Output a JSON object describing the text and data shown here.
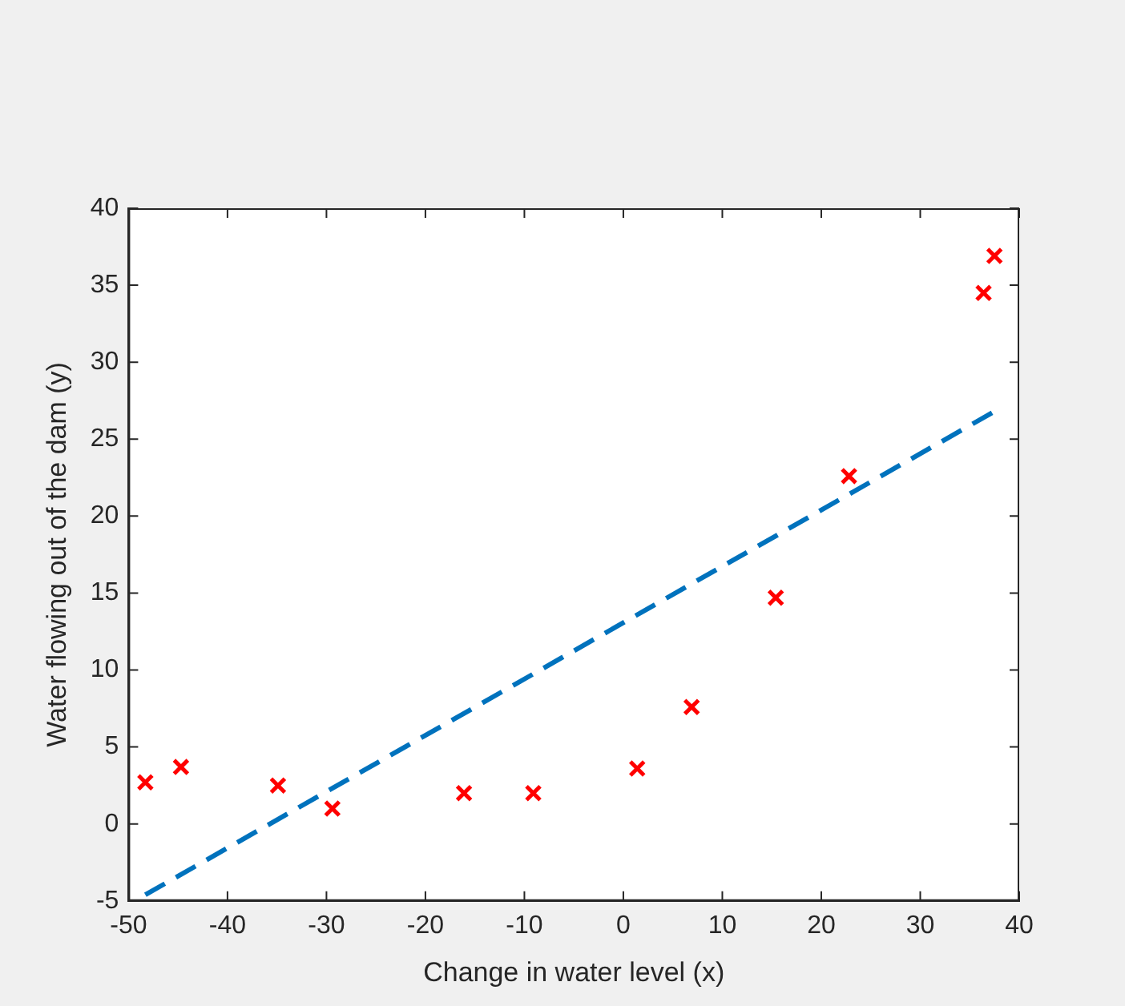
{
  "chart_data": {
    "type": "scatter",
    "xlabel": "Change in water level (x)",
    "ylabel": "Water flowing out of the dam (y)",
    "xlim": [
      -50,
      40
    ],
    "xticks": [
      -50,
      -40,
      -30,
      -20,
      -10,
      0,
      10,
      20,
      30,
      40
    ],
    "ylim": [
      -5,
      40
    ],
    "yticks": [
      -5,
      0,
      5,
      10,
      15,
      20,
      25,
      30,
      35,
      40
    ],
    "grid": false,
    "legend": false,
    "series": [
      {
        "color": "#ff0000",
        "marker": "cross",
        "x": [
          -48.3,
          -44.7,
          -34.9,
          -29.4,
          -16.1,
          -9.1,
          1.4,
          6.9,
          15.4,
          22.8,
          36.4,
          37.5
        ],
        "values": [
          2.7,
          3.7,
          2.5,
          1.0,
          2.0,
          2.0,
          3.6,
          7.6,
          14.7,
          22.6,
          34.5,
          36.9
        ]
      },
      {
        "type": "line",
        "color": "#0072bd",
        "marker": "none",
        "line_style": "dashed",
        "x": [
          -48.3,
          37.5
        ],
        "values": [
          -4.6,
          26.8
        ]
      }
    ]
  }
}
